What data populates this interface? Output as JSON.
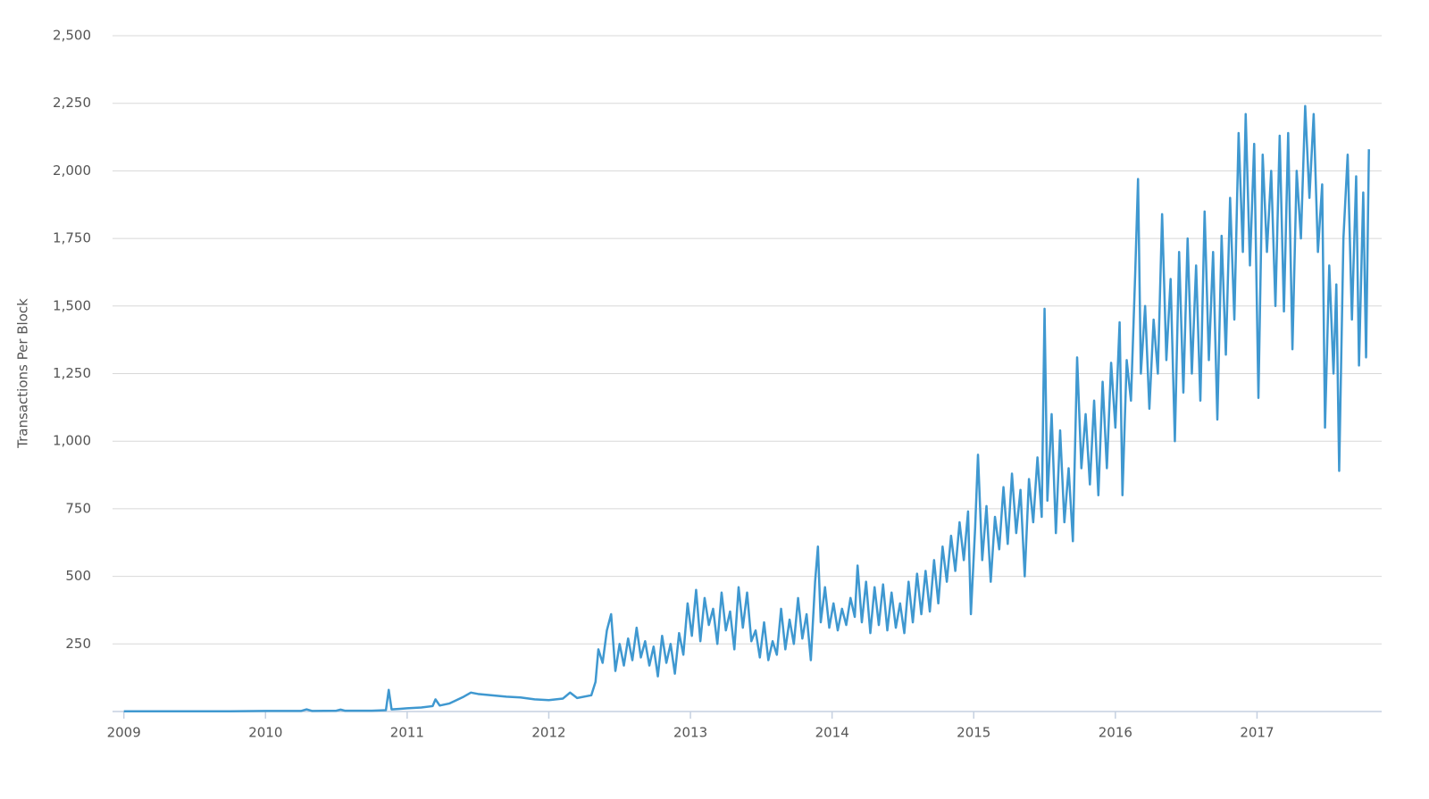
{
  "chart_data": {
    "type": "line",
    "y_label": "Transactions Per Block",
    "color": "#3f98d0",
    "grid": true,
    "xlim": [
      2008.92,
      2017.88
    ],
    "xticks": [
      2009,
      2010,
      2011,
      2012,
      2013,
      2014,
      2015,
      2016,
      2017
    ],
    "ylim": [
      0,
      2500
    ],
    "yticks": [
      {
        "value": 250,
        "label": "250"
      },
      {
        "value": 500,
        "label": "500"
      },
      {
        "value": 750,
        "label": "750"
      },
      {
        "value": 1000,
        "label": "1,000"
      },
      {
        "value": 1250,
        "label": "1,250"
      },
      {
        "value": 1500,
        "label": "1,500"
      },
      {
        "value": 1750,
        "label": "1,750"
      },
      {
        "value": 2000,
        "label": "2,000"
      },
      {
        "value": 2250,
        "label": "2,250"
      },
      {
        "value": 2500,
        "label": "2,500"
      }
    ],
    "x": [
      2009,
      2009.25,
      2009.5,
      2009.75,
      2010,
      2010.25,
      2010.29,
      2010.33,
      2010.5,
      2010.53,
      2010.56,
      2010.75,
      2010.85,
      2010.87,
      2010.89,
      2010.95,
      2011.0,
      2011.1,
      2011.18,
      2011.2,
      2011.23,
      2011.3,
      2011.4,
      2011.45,
      2011.5,
      2011.6,
      2011.7,
      2011.8,
      2011.9,
      2012.0,
      2012.1,
      2012.15,
      2012.2,
      2012.3,
      2012.33,
      2012.35,
      2012.38,
      2012.41,
      2012.44,
      2012.47,
      2012.5,
      2012.53,
      2012.56,
      2012.59,
      2012.62,
      2012.65,
      2012.68,
      2012.71,
      2012.74,
      2012.77,
      2012.8,
      2012.83,
      2012.86,
      2012.89,
      2012.92,
      2012.95,
      2012.98,
      2013.01,
      2013.04,
      2013.07,
      2013.1,
      2013.13,
      2013.16,
      2013.19,
      2013.22,
      2013.25,
      2013.28,
      2013.31,
      2013.34,
      2013.37,
      2013.4,
      2013.43,
      2013.46,
      2013.49,
      2013.52,
      2013.55,
      2013.58,
      2013.61,
      2013.64,
      2013.67,
      2013.7,
      2013.73,
      2013.76,
      2013.79,
      2013.82,
      2013.85,
      2013.88,
      2013.9,
      2013.92,
      2013.95,
      2013.98,
      2014.01,
      2014.04,
      2014.07,
      2014.1,
      2014.13,
      2014.16,
      2014.18,
      2014.21,
      2014.24,
      2014.27,
      2014.3,
      2014.33,
      2014.36,
      2014.39,
      2014.42,
      2014.45,
      2014.48,
      2014.51,
      2014.54,
      2014.57,
      2014.6,
      2014.63,
      2014.66,
      2014.69,
      2014.72,
      2014.75,
      2014.78,
      2014.81,
      2014.84,
      2014.87,
      2014.9,
      2014.93,
      2014.96,
      2014.98,
      2015.01,
      2015.03,
      2015.06,
      2015.09,
      2015.12,
      2015.15,
      2015.18,
      2015.21,
      2015.24,
      2015.27,
      2015.3,
      2015.33,
      2015.36,
      2015.39,
      2015.42,
      2015.45,
      2015.48,
      2015.5,
      2015.52,
      2015.55,
      2015.58,
      2015.61,
      2015.64,
      2015.67,
      2015.7,
      2015.73,
      2015.76,
      2015.79,
      2015.82,
      2015.85,
      2015.88,
      2015.91,
      2015.94,
      2015.97,
      2016.0,
      2016.03,
      2016.05,
      2016.08,
      2016.11,
      2016.14,
      2016.16,
      2016.18,
      2016.21,
      2016.24,
      2016.27,
      2016.3,
      2016.33,
      2016.36,
      2016.39,
      2016.42,
      2016.45,
      2016.48,
      2016.51,
      2016.54,
      2016.57,
      2016.6,
      2016.63,
      2016.66,
      2016.69,
      2016.72,
      2016.75,
      2016.78,
      2016.81,
      2016.84,
      2016.87,
      2016.9,
      2016.92,
      2016.95,
      2016.98,
      2017.01,
      2017.04,
      2017.07,
      2017.1,
      2017.13,
      2017.16,
      2017.19,
      2017.22,
      2017.25,
      2017.28,
      2017.31,
      2017.34,
      2017.37,
      2017.4,
      2017.43,
      2017.46,
      2017.48,
      2017.51,
      2017.54,
      2017.56,
      2017.58,
      2017.61,
      2017.64,
      2017.67,
      2017.7,
      2017.72,
      2017.75,
      2017.77,
      2017.79
    ],
    "values": [
      1,
      1,
      1,
      1,
      2,
      2,
      8,
      2,
      3,
      7,
      3,
      3,
      5,
      80,
      8,
      10,
      12,
      15,
      20,
      45,
      22,
      30,
      55,
      70,
      65,
      60,
      55,
      52,
      45,
      42,
      48,
      70,
      50,
      60,
      110,
      230,
      180,
      300,
      360,
      150,
      250,
      170,
      270,
      190,
      310,
      200,
      260,
      170,
      240,
      130,
      280,
      180,
      250,
      140,
      290,
      210,
      400,
      280,
      450,
      260,
      420,
      320,
      380,
      250,
      440,
      300,
      370,
      230,
      460,
      310,
      440,
      260,
      300,
      200,
      330,
      190,
      260,
      210,
      380,
      230,
      340,
      250,
      420,
      270,
      360,
      190,
      480,
      610,
      330,
      460,
      310,
      400,
      300,
      380,
      320,
      420,
      350,
      540,
      330,
      480,
      290,
      460,
      320,
      470,
      300,
      440,
      310,
      400,
      290,
      480,
      330,
      510,
      360,
      520,
      370,
      560,
      400,
      610,
      480,
      650,
      520,
      700,
      560,
      740,
      360,
      680,
      950,
      560,
      760,
      480,
      720,
      600,
      830,
      620,
      880,
      660,
      820,
      500,
      860,
      700,
      940,
      720,
      1490,
      780,
      1100,
      660,
      1040,
      700,
      900,
      630,
      1310,
      900,
      1100,
      840,
      1150,
      800,
      1220,
      900,
      1290,
      1050,
      1440,
      800,
      1300,
      1150,
      1620,
      1970,
      1250,
      1500,
      1120,
      1450,
      1250,
      1840,
      1300,
      1600,
      1000,
      1700,
      1180,
      1750,
      1250,
      1650,
      1150,
      1850,
      1300,
      1700,
      1080,
      1760,
      1320,
      1900,
      1450,
      2140,
      1700,
      2210,
      1650,
      2100,
      1160,
      2060,
      1700,
      2000,
      1500,
      2130,
      1480,
      2140,
      1340,
      2000,
      1750,
      2240,
      1900,
      2210,
      1700,
      1950,
      1050,
      1650,
      1250,
      1580,
      890,
      1750,
      2060,
      1450,
      1980,
      1280,
      1920,
      1310,
      2080
    ]
  }
}
